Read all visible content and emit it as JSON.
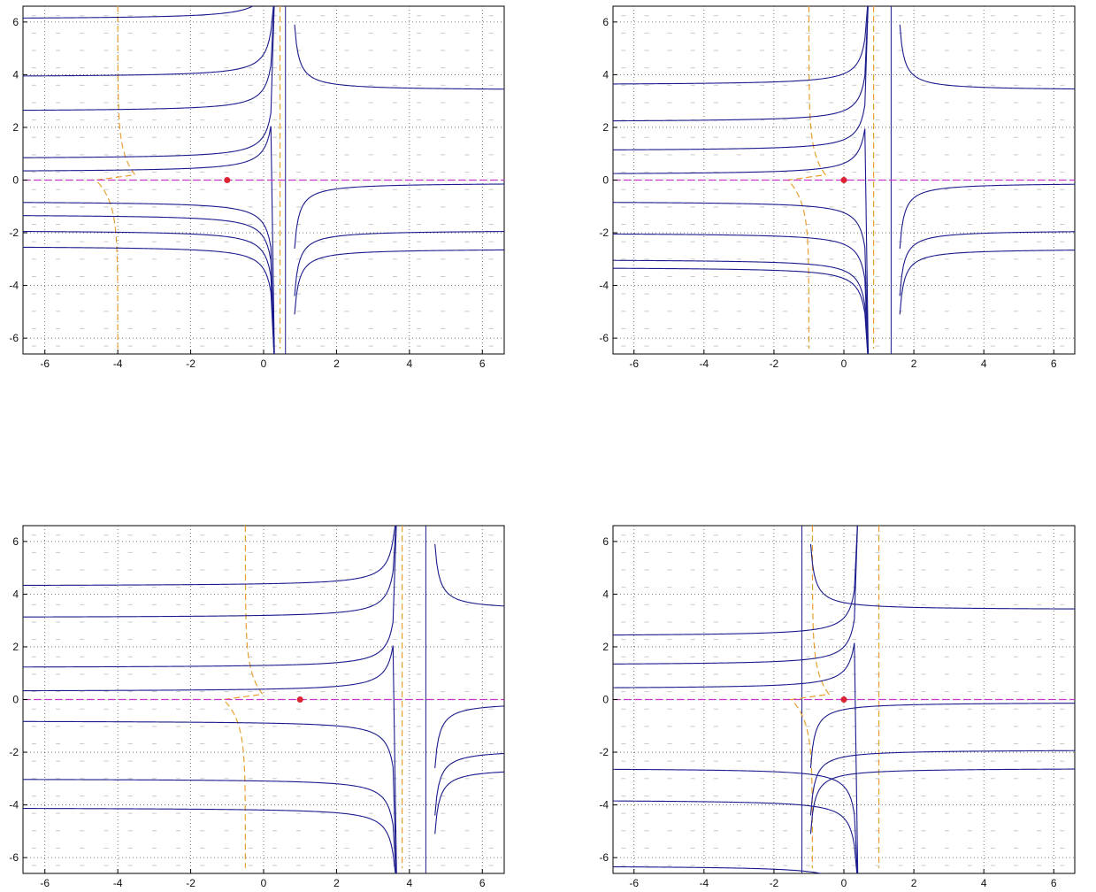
{
  "chart_data": [
    {
      "type": "line",
      "panel": "top-left",
      "xlim": [
        -6.6,
        6.6
      ],
      "ylim": [
        -6.6,
        6.6
      ],
      "x_ticks": [
        "-6",
        "-4",
        "-2",
        "0",
        "2",
        "4",
        "6"
      ],
      "y_ticks": [
        "-6",
        "-4",
        "-2",
        "0",
        "2",
        "4",
        "6"
      ],
      "grid": true,
      "equilibrium": [
        -1,
        0
      ],
      "nullcline_vertical_x": [
        -4,
        0.45
      ],
      "separatrix_x": 0.6,
      "trajectory_levels": [
        6.1,
        3.9,
        2.6,
        0.8,
        0.3,
        -0.8,
        -1.3,
        -1.9,
        -2.5
      ],
      "colors": {
        "trajectory": "#1a1a8c",
        "nullcline": "#e8a030",
        "axis_line": "#cc33cc",
        "point": "#dd2233",
        "field": "#c8c8c8"
      }
    },
    {
      "type": "line",
      "panel": "top-right",
      "xlim": [
        -6.6,
        6.6
      ],
      "ylim": [
        -6.6,
        6.6
      ],
      "x_ticks": [
        "-6",
        "-4",
        "-2",
        "0",
        "2",
        "4",
        "6"
      ],
      "y_ticks": [
        "-6",
        "-4",
        "-2",
        "0",
        "2",
        "4",
        "6"
      ],
      "grid": true,
      "equilibrium": [
        0,
        0
      ],
      "nullcline_vertical_x": [
        -1,
        0.85
      ],
      "separatrix_x": 1.35,
      "trajectory_levels": [
        3.6,
        2.2,
        1.1,
        0.2,
        -0.8,
        -2.0,
        -3.0,
        -3.3
      ],
      "colors": {
        "trajectory": "#1a1a8c",
        "nullcline": "#e8a030",
        "axis_line": "#cc33cc",
        "point": "#dd2233",
        "field": "#c8c8c8"
      }
    },
    {
      "type": "line",
      "panel": "bottom-left",
      "xlim": [
        -6.6,
        6.6
      ],
      "ylim": [
        -6.6,
        6.6
      ],
      "x_ticks": [
        "-6",
        "-4",
        "-2",
        "0",
        "2",
        "4",
        "6"
      ],
      "y_ticks": [
        "-6",
        "-4",
        "-2",
        "0",
        "2",
        "4",
        "6"
      ],
      "grid": true,
      "equilibrium": [
        1,
        0
      ],
      "nullcline_vertical_x": [
        -0.5,
        3.8
      ],
      "separatrix_x": 4.45,
      "trajectory_levels": [
        4.3,
        3.1,
        1.2,
        0.3,
        -0.8,
        -3.0,
        -4.1
      ],
      "colors": {
        "trajectory": "#1a1a8c",
        "nullcline": "#e8a030",
        "axis_line": "#cc33cc",
        "point": "#dd2233",
        "field": "#c8c8c8"
      }
    },
    {
      "type": "line",
      "panel": "bottom-right",
      "xlim": [
        -6.6,
        6.6
      ],
      "ylim": [
        -6.6,
        6.6
      ],
      "x_ticks": [
        "-6",
        "-4",
        "-2",
        "0",
        "2",
        "4",
        "6"
      ],
      "y_ticks": [
        "-6",
        "-4",
        "-2",
        "0",
        "2",
        "4",
        "6"
      ],
      "grid": true,
      "equilibrium": [
        0,
        0
      ],
      "nullcline_vertical_x": [
        -0.9,
        1.0
      ],
      "separatrix_x": -1.2,
      "trajectory_levels": [
        2.4,
        1.3,
        0.4,
        -2.6,
        -3.8,
        -6.3
      ],
      "left_levels": [
        2.6,
        0.6,
        -2.9
      ],
      "colors": {
        "trajectory": "#1a1a8c",
        "nullcline": "#e8a030",
        "axis_line": "#cc33cc",
        "point": "#dd2233",
        "field": "#c8c8c8"
      }
    }
  ]
}
